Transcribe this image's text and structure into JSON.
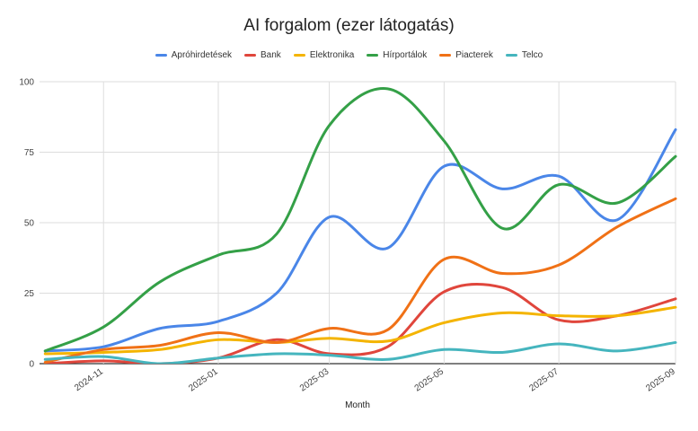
{
  "chart_data": {
    "type": "line",
    "title": "AI forgalom (ezer látogatás)",
    "xlabel": "Month",
    "ylabel": "",
    "ylim": [
      0,
      100
    ],
    "yticks": [
      0,
      25,
      50,
      75,
      100
    ],
    "xlim": [
      "2024-09-28",
      "2025-09-01"
    ],
    "xticks": [
      "2024-11",
      "2025-01",
      "2025-03",
      "2025-05",
      "2025-07",
      "2025-09"
    ],
    "grid": true,
    "legend_position": "top",
    "x": [
      "2024-10",
      "2024-11",
      "2024-12",
      "2025-01",
      "2025-02",
      "2025-03",
      "2025-04",
      "2025-05",
      "2025-06",
      "2025-07",
      "2025-08",
      "2025-09"
    ],
    "series": [
      {
        "name": "Apróhirdetések",
        "color": "#4a86e8",
        "values": [
          4.5,
          6,
          12.5,
          15,
          25,
          52,
          41,
          70,
          62,
          66.5,
          51,
          83
        ]
      },
      {
        "name": "Bank",
        "color": "#e0463c",
        "values": [
          0,
          1,
          0,
          2,
          8.5,
          3.5,
          6,
          25.5,
          27,
          15.5,
          17,
          23
        ]
      },
      {
        "name": "Elektronika",
        "color": "#f4b400",
        "values": [
          3.5,
          4,
          5,
          8.5,
          7.5,
          9,
          8,
          14.5,
          18,
          17,
          17,
          20
        ]
      },
      {
        "name": "Hírportálok",
        "color": "#34a047",
        "values": [
          4.5,
          13,
          29,
          38.5,
          46,
          84.5,
          97.5,
          79,
          48,
          63.5,
          57,
          73.5
        ]
      },
      {
        "name": "Piacterek",
        "color": "#f07116",
        "values": [
          0.5,
          5,
          6.5,
          11,
          7.5,
          12.5,
          12,
          37,
          32,
          35,
          48.5,
          58.5
        ]
      },
      {
        "name": "Telco",
        "color": "#45b5be",
        "values": [
          1.5,
          2.5,
          0,
          2,
          3.5,
          3,
          1.5,
          5,
          4,
          7,
          4.5,
          7.5
        ]
      }
    ]
  }
}
